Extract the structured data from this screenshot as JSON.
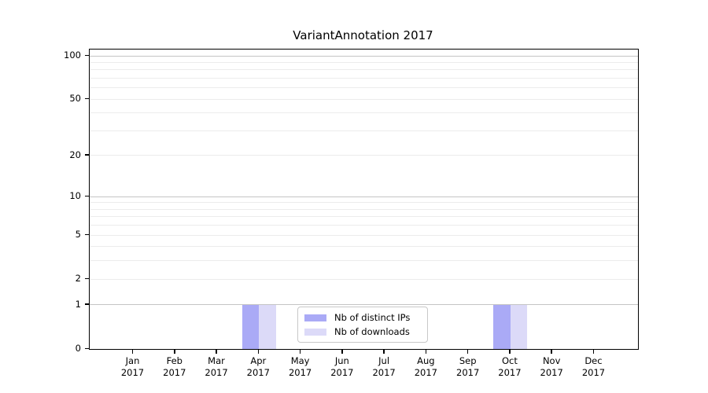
{
  "chart_data": {
    "type": "bar",
    "title": "VariantAnnotation 2017",
    "categories": [
      "Jan",
      "Feb",
      "Mar",
      "Apr",
      "May",
      "Jun",
      "Jul",
      "Aug",
      "Sep",
      "Oct",
      "Nov",
      "Dec"
    ],
    "year": "2017",
    "series": [
      {
        "name": "Nb of distinct IPs",
        "color": "#aaaaf6",
        "values": [
          0,
          0,
          0,
          1,
          0,
          0,
          0,
          0,
          0,
          1,
          0,
          0
        ]
      },
      {
        "name": "Nb of downloads",
        "color": "#dcdaf8",
        "values": [
          0,
          0,
          0,
          1,
          0,
          0,
          0,
          0,
          0,
          1,
          0,
          0
        ]
      }
    ],
    "yticks": [
      0,
      1,
      2,
      5,
      10,
      20,
      50,
      100
    ],
    "ylim": [
      0,
      100
    ],
    "yscale": "log10(1+x)",
    "grid": {
      "minor_values": [
        2,
        3,
        4,
        5,
        6,
        7,
        8,
        9,
        20,
        30,
        40,
        50,
        60,
        70,
        80,
        90
      ],
      "major_values": [
        1,
        10,
        100
      ],
      "minor_color": "#ececec",
      "major_color": "#c4c4c4"
    },
    "legend_position": "lower-center-inside",
    "axis_color": "#000000"
  }
}
